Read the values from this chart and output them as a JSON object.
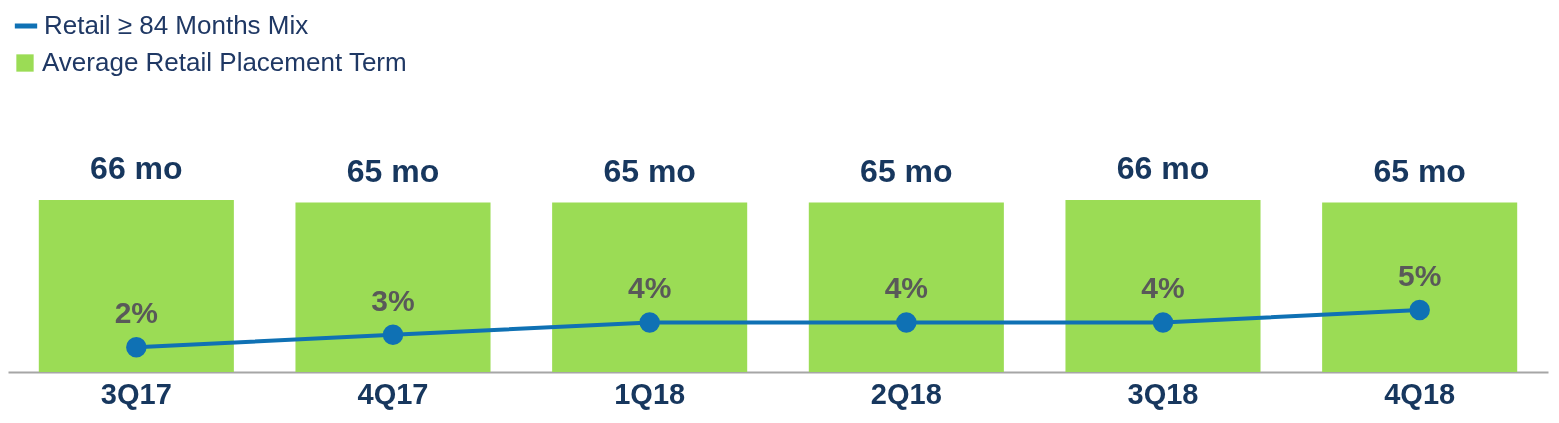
{
  "chart_data": {
    "type": "bar",
    "categories": [
      "3Q17",
      "4Q17",
      "1Q18",
      "2Q18",
      "3Q18",
      "4Q18"
    ],
    "series": [
      {
        "name": "Retail ≥ 84 Months Mix",
        "type": "line",
        "axis": "y2",
        "color": "#0f71b4",
        "values": [
          2,
          3,
          4,
          4,
          4,
          5
        ],
        "value_labels": [
          "2%",
          "3%",
          "4%",
          "4%",
          "4%",
          "5%"
        ]
      },
      {
        "name": "Average Retail Placement Term",
        "color": "#9bdc55",
        "values": [
          66,
          65,
          65,
          65,
          66,
          65
        ],
        "value_labels": [
          "66 mo",
          "65 mo",
          "65 mo",
          "65 mo",
          "66 mo",
          "65 mo"
        ]
      }
    ],
    "tick_labels": "x",
    "grid": false,
    "legend": "top left",
    "marker": "circle",
    "line_style": "solid"
  }
}
